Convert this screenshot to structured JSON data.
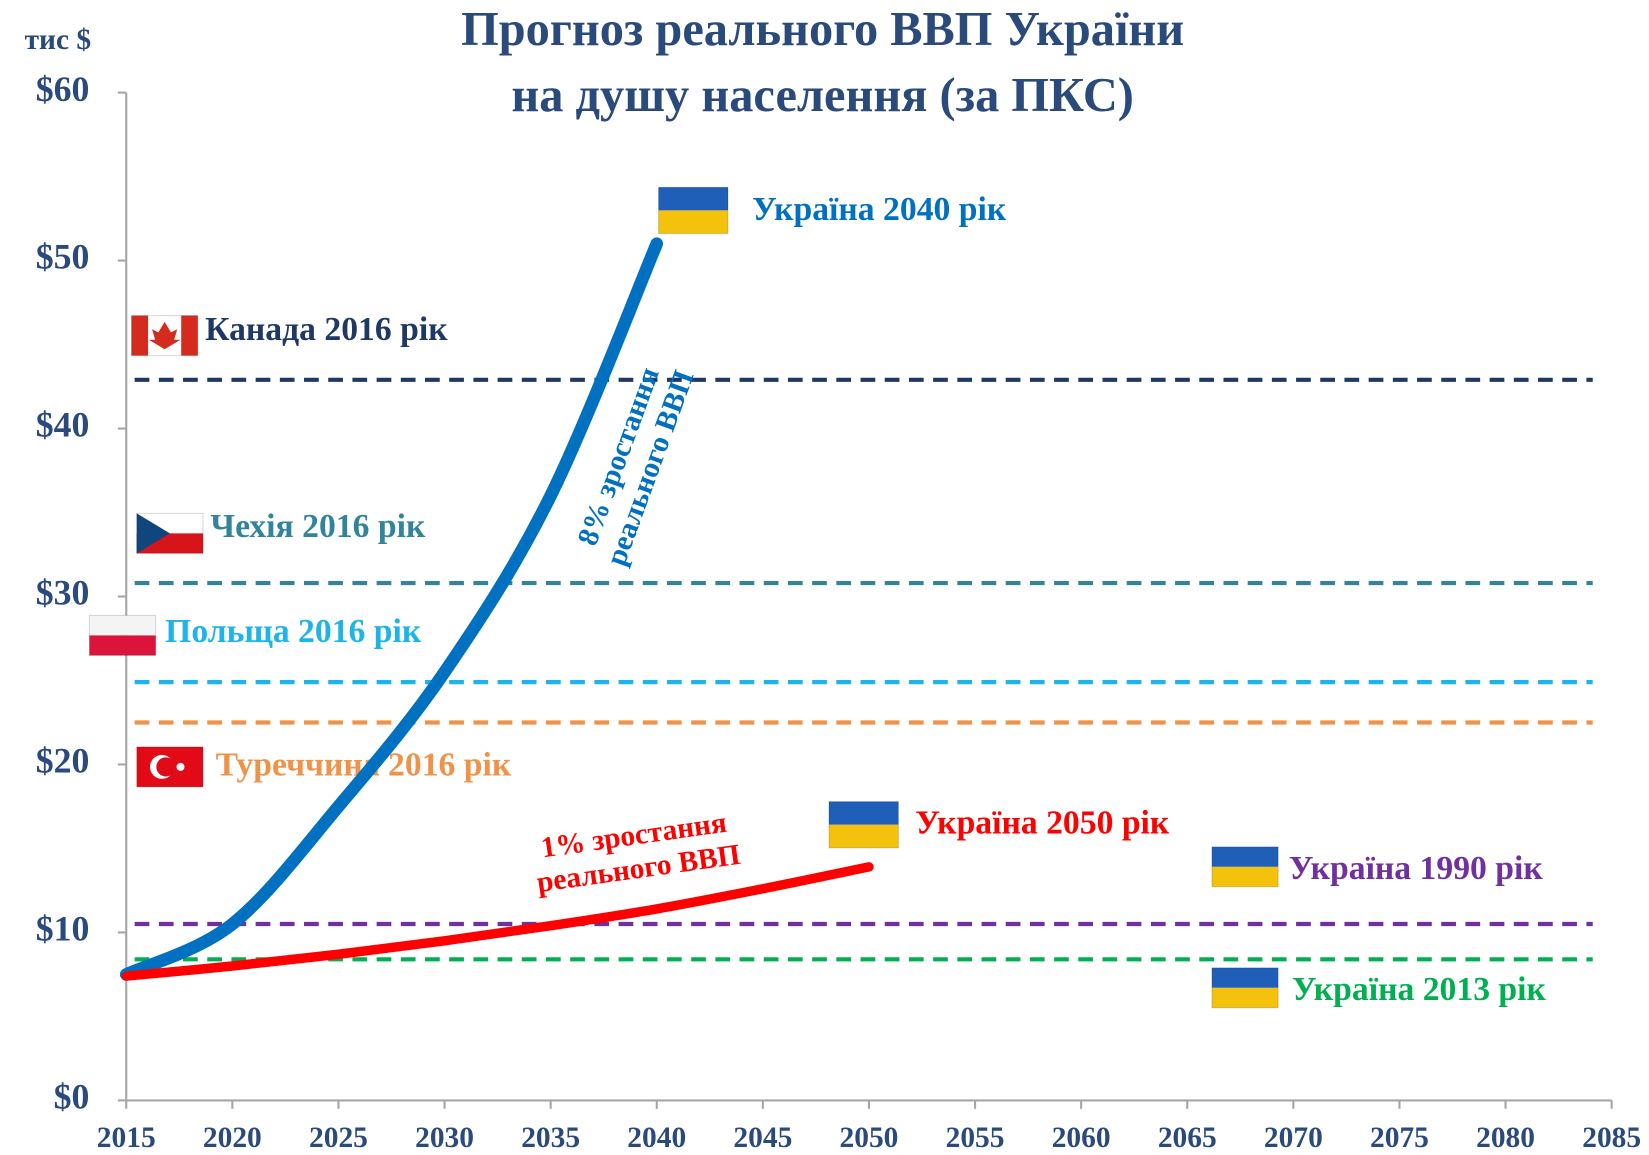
{
  "chart_data": {
    "type": "line",
    "title": [
      "Прогноз реального ВВП України",
      "на душу населення (за ПКС)"
    ],
    "y_label": "тис $",
    "xlim": [
      2015,
      2085
    ],
    "xticks": [
      2015,
      2020,
      2025,
      2030,
      2035,
      2040,
      2045,
      2050,
      2055,
      2060,
      2065,
      2070,
      2075,
      2080,
      2085
    ],
    "ylim": [
      0,
      60
    ],
    "yticks": [
      {
        "value": 0,
        "label": "$0"
      },
      {
        "value": 10,
        "label": "$10"
      },
      {
        "value": 20,
        "label": "$20"
      },
      {
        "value": 30,
        "label": "$30"
      },
      {
        "value": 40,
        "label": "$40"
      },
      {
        "value": 50,
        "label": "$50"
      },
      {
        "value": 60,
        "label": "$60"
      }
    ],
    "series": [
      {
        "label": [
          "8% зростання",
          "реального ВВП"
        ],
        "end_label": "Україна 2040 рік",
        "color": "#0070c0",
        "x": [
          2015,
          2020,
          2025,
          2030,
          2035,
          2040
        ],
        "values": [
          7.5,
          10.5,
          17.5,
          25.5,
          36,
          51
        ]
      },
      {
        "label": [
          "1% зростання",
          "реального ВВП"
        ],
        "end_label": "Україна 2050 рік",
        "color": "#ff0000",
        "x": [
          2015,
          2020,
          2025,
          2030,
          2035,
          2040,
          2045,
          2050
        ],
        "values": [
          7.4,
          8.0,
          8.7,
          9.5,
          10.4,
          11.4,
          12.6,
          13.9
        ]
      }
    ],
    "reference_lines": [
      {
        "label": "Канада 2016 рік",
        "value": 42.9,
        "color": "#1f3864"
      },
      {
        "label": "Чехія 2016 рік",
        "value": 30.8,
        "color": "#31849b"
      },
      {
        "label": "Польща 2016 рік",
        "value": 24.9,
        "color": "#1fb4e8"
      },
      {
        "label": "Туреччина 2016 рік",
        "value": 22.5,
        "color": "#f0934a"
      },
      {
        "label": "Україна 1990 рік",
        "value": 10.5,
        "color": "#7030a0"
      },
      {
        "label": "Україна 2013 рік",
        "value": 8.4,
        "color": "#00b050"
      }
    ]
  }
}
